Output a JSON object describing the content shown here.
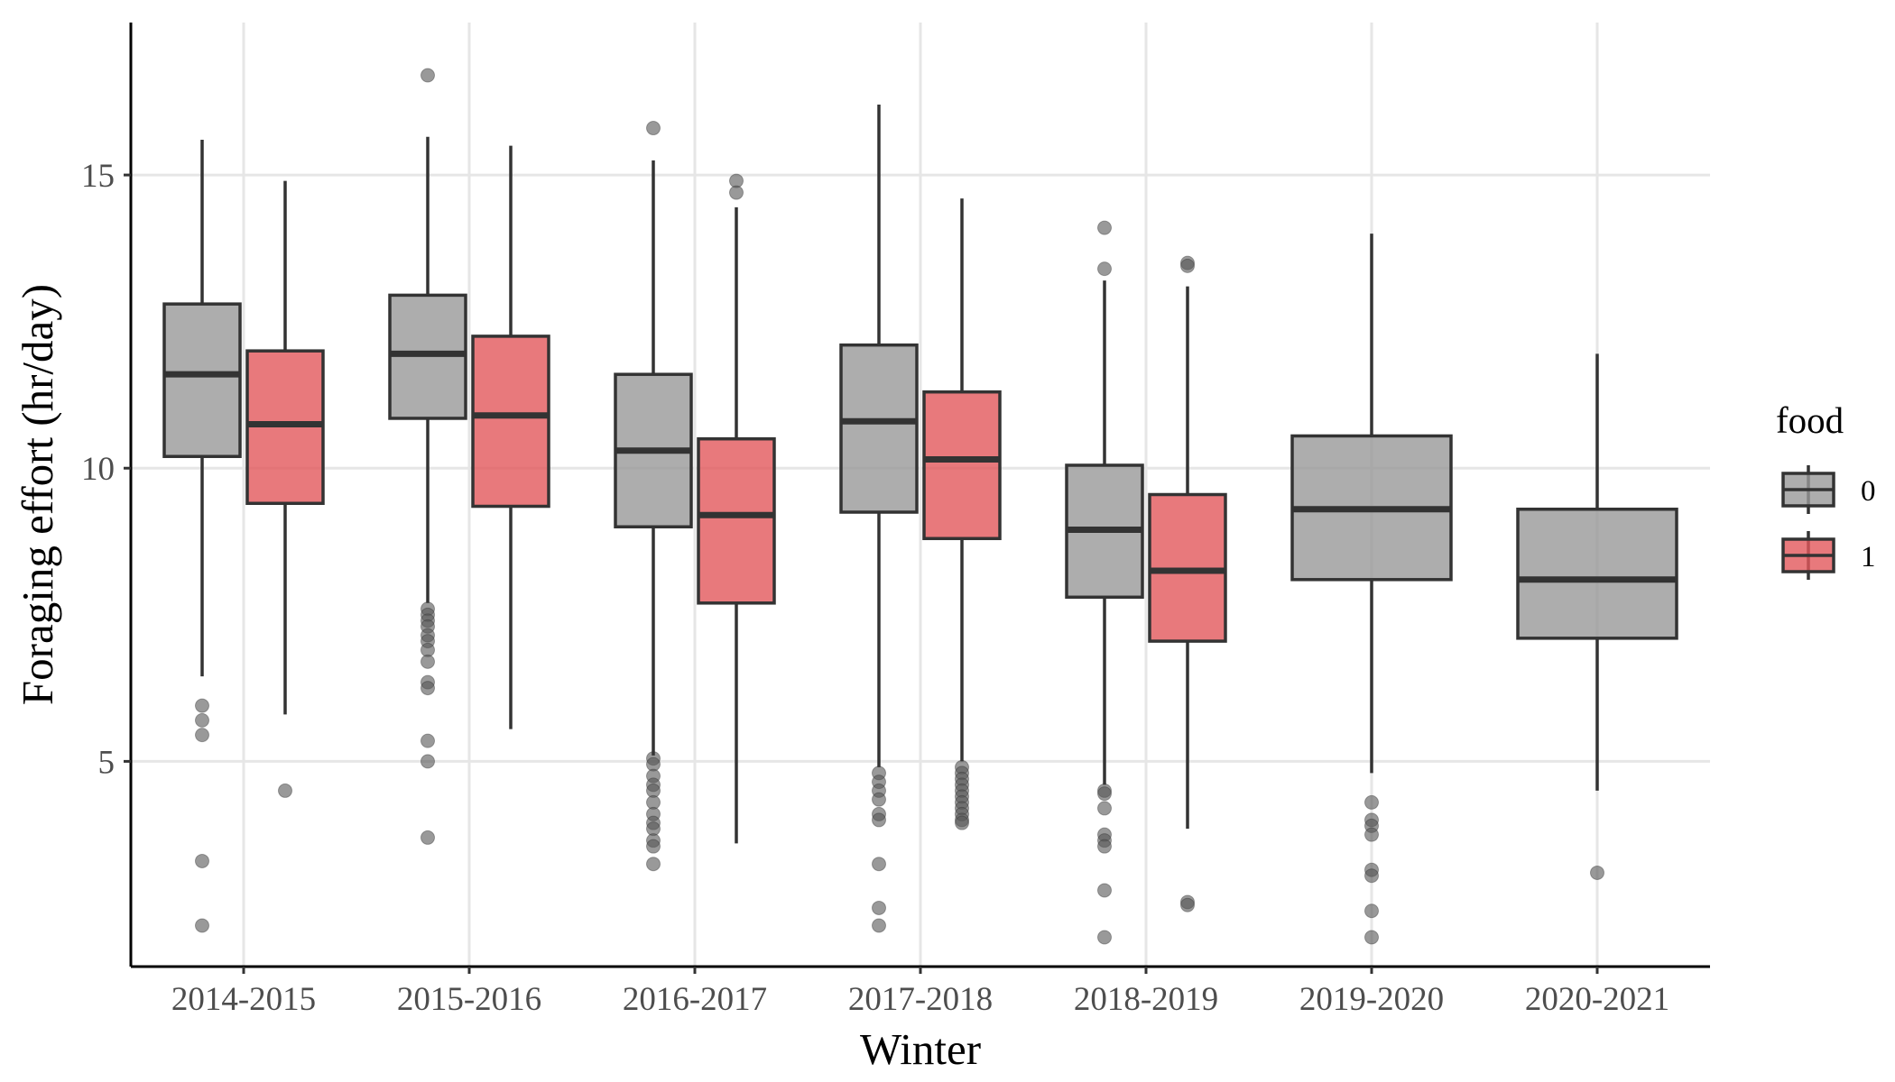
{
  "chart_data": {
    "type": "box",
    "xlabel": "Winter",
    "ylabel": "Foraging effort (hr/day)",
    "categories": [
      "2014-2015",
      "2015-2016",
      "2016-2017",
      "2017-2018",
      "2018-2019",
      "2019-2020",
      "2020-2021"
    ],
    "yticks": [
      5,
      10,
      15
    ],
    "ylim": [
      1.5,
      17.6
    ],
    "grid": true,
    "legend": {
      "title": "food",
      "position": "right",
      "entries": [
        {
          "label": "0",
          "color": "#999999"
        },
        {
          "label": "1",
          "color": "#e2575b"
        }
      ]
    },
    "series": [
      {
        "name": "0",
        "color": "#999999",
        "boxes": [
          {
            "category": "2014-2015",
            "q1": 10.2,
            "median": 11.6,
            "q3": 12.8,
            "whisker_low": 6.45,
            "whisker_high": 15.6,
            "outliers": [
              5.95,
              5.7,
              5.45,
              3.3,
              2.2
            ]
          },
          {
            "category": "2015-2016",
            "q1": 10.85,
            "median": 11.95,
            "q3": 12.95,
            "whisker_low": 7.7,
            "whisker_high": 15.65,
            "outliers": [
              16.7,
              7.6,
              7.5,
              7.4,
              7.3,
              7.15,
              7.05,
              6.9,
              6.7,
              6.35,
              6.25,
              5.35,
              5.0,
              3.7
            ]
          },
          {
            "category": "2016-2017",
            "q1": 9.0,
            "median": 10.3,
            "q3": 11.6,
            "whisker_low": 5.1,
            "whisker_high": 15.25,
            "outliers": [
              15.8,
              5.05,
              4.95,
              4.75,
              4.6,
              4.5,
              4.3,
              4.1,
              3.95,
              3.85,
              3.65,
              3.55,
              3.25
            ]
          },
          {
            "category": "2017-2018",
            "q1": 9.25,
            "median": 10.8,
            "q3": 12.1,
            "whisker_low": 4.9,
            "whisker_high": 16.2,
            "outliers": [
              4.8,
              4.65,
              4.5,
              4.35,
              4.1,
              4.0,
              3.25,
              2.5,
              2.2
            ]
          },
          {
            "category": "2018-2019",
            "q1": 7.8,
            "median": 8.95,
            "q3": 10.05,
            "whisker_low": 4.6,
            "whisker_high": 13.2,
            "outliers": [
              14.1,
              13.4,
              4.5,
              4.45,
              4.2,
              3.75,
              3.65,
              3.55,
              2.8,
              2.0
            ]
          },
          {
            "category": "2019-2020",
            "q1": 8.1,
            "median": 9.3,
            "q3": 10.55,
            "whisker_low": 4.8,
            "whisker_high": 14.0,
            "outliers": [
              4.3,
              4.0,
              3.9,
              3.75,
              3.15,
              3.05,
              2.45,
              2.0
            ]
          },
          {
            "category": "2020-2021",
            "q1": 7.1,
            "median": 8.1,
            "q3": 9.3,
            "whisker_low": 4.5,
            "whisker_high": 11.95,
            "outliers": [
              3.1
            ]
          }
        ]
      },
      {
        "name": "1",
        "color": "#e2575b",
        "boxes": [
          {
            "category": "2014-2015",
            "q1": 9.4,
            "median": 10.75,
            "q3": 12.0,
            "whisker_low": 5.8,
            "whisker_high": 14.9,
            "outliers": [
              4.5
            ]
          },
          {
            "category": "2015-2016",
            "q1": 9.35,
            "median": 10.9,
            "q3": 12.25,
            "whisker_low": 5.55,
            "whisker_high": 15.5,
            "outliers": []
          },
          {
            "category": "2016-2017",
            "q1": 7.7,
            "median": 9.2,
            "q3": 10.5,
            "whisker_low": 3.6,
            "whisker_high": 14.45,
            "outliers": [
              14.9,
              14.7
            ]
          },
          {
            "category": "2017-2018",
            "q1": 8.8,
            "median": 10.15,
            "q3": 11.3,
            "whisker_low": 5.0,
            "whisker_high": 14.6,
            "outliers": [
              4.9,
              4.8,
              4.7,
              4.6,
              4.5,
              4.4,
              4.3,
              4.2,
              4.1,
              4.0,
              3.95
            ]
          },
          {
            "category": "2018-2019",
            "q1": 7.05,
            "median": 8.25,
            "q3": 9.55,
            "whisker_low": 3.85,
            "whisker_high": 13.1,
            "outliers": [
              13.5,
              13.45,
              2.6,
              2.55
            ]
          }
        ]
      }
    ]
  }
}
